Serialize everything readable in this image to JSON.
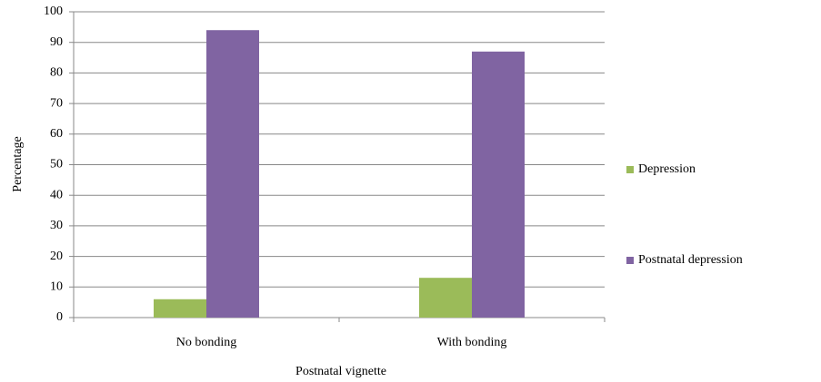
{
  "chart_data": {
    "type": "bar",
    "x_label": "Postnatal vignette",
    "y_label": "Percentage",
    "categories": [
      "No bonding",
      "With bonding"
    ],
    "series": [
      {
        "name": "Depression",
        "color": "#9bbb59",
        "values": [
          6,
          13
        ]
      },
      {
        "name": "Postnatal depression",
        "color": "#8064a2",
        "values": [
          94,
          87
        ]
      }
    ],
    "ylim": [
      0,
      100
    ],
    "yticks": [
      0,
      10,
      20,
      30,
      40,
      50,
      60,
      70,
      80,
      90,
      100
    ],
    "grid": true,
    "legend": "right"
  }
}
